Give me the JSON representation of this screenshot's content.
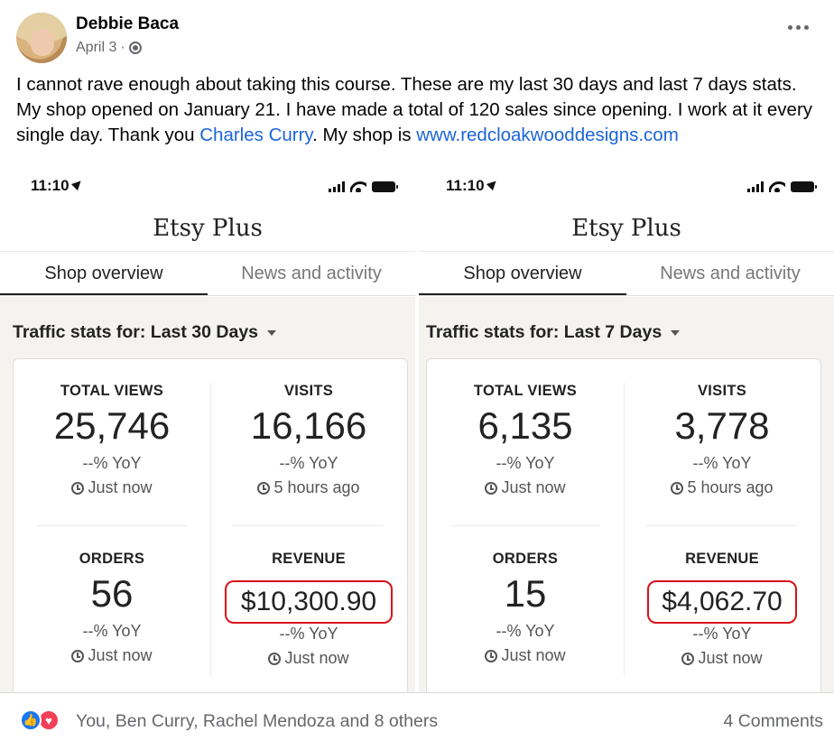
{
  "post": {
    "author": "Debbie Baca",
    "date": "April 3",
    "separator": "·",
    "text_part1": "I cannot rave enough about taking this course. These are my last 30 days and last 7 days stats. My shop opened on January 21. I have made a total of 120 sales since opening.  I work at it every single day. Thank you ",
    "mention": "Charles Curry",
    "text_part2": ". My shop is ",
    "link": "www.redcloakwooddesigns.com"
  },
  "panels": [
    {
      "time": "11:10",
      "app_title": "Etsy Plus",
      "tabs": [
        "Shop overview",
        "News and activity"
      ],
      "traffic_label": "Traffic stats for: Last 30 Days",
      "stats": [
        {
          "label": "TOTAL VIEWS",
          "value": "25,746",
          "yoy": "--% YoY",
          "updated": "Just now"
        },
        {
          "label": "VISITS",
          "value": "16,166",
          "yoy": "--% YoY",
          "updated": "5 hours ago"
        },
        {
          "label": "ORDERS",
          "value": "56",
          "yoy": "--% YoY",
          "updated": "Just now"
        },
        {
          "label": "REVENUE",
          "value": "$10,300.90",
          "yoy": "--% YoY",
          "updated": "Just now"
        }
      ]
    },
    {
      "time": "11:10",
      "app_title": "Etsy Plus",
      "tabs": [
        "Shop overview",
        "News and activity"
      ],
      "traffic_label": "Traffic stats for: Last 7 Days",
      "stats": [
        {
          "label": "TOTAL VIEWS",
          "value": "6,135",
          "yoy": "--% YoY",
          "updated": "Just now"
        },
        {
          "label": "VISITS",
          "value": "3,778",
          "yoy": "--% YoY",
          "updated": "5 hours ago"
        },
        {
          "label": "ORDERS",
          "value": "15",
          "yoy": "--% YoY",
          "updated": "Just now"
        },
        {
          "label": "REVENUE",
          "value": "$4,062.70",
          "yoy": "--% YoY",
          "updated": "Just now"
        }
      ]
    }
  ],
  "footer": {
    "reactions_text": "You, Ben Curry, Rachel Mendoza and 8 others",
    "comments": "4 Comments"
  },
  "colors": {
    "link": "#1b64d8",
    "highlight_box": "#d9111a",
    "like": "#1877f2",
    "love": "#f33e58"
  },
  "icons": [
    "globe-icon",
    "more-options-icon",
    "location-arrow-icon",
    "signal-icon",
    "wifi-icon",
    "battery-icon",
    "dropdown-caret-icon",
    "clock-icon",
    "like-icon",
    "love-icon"
  ]
}
